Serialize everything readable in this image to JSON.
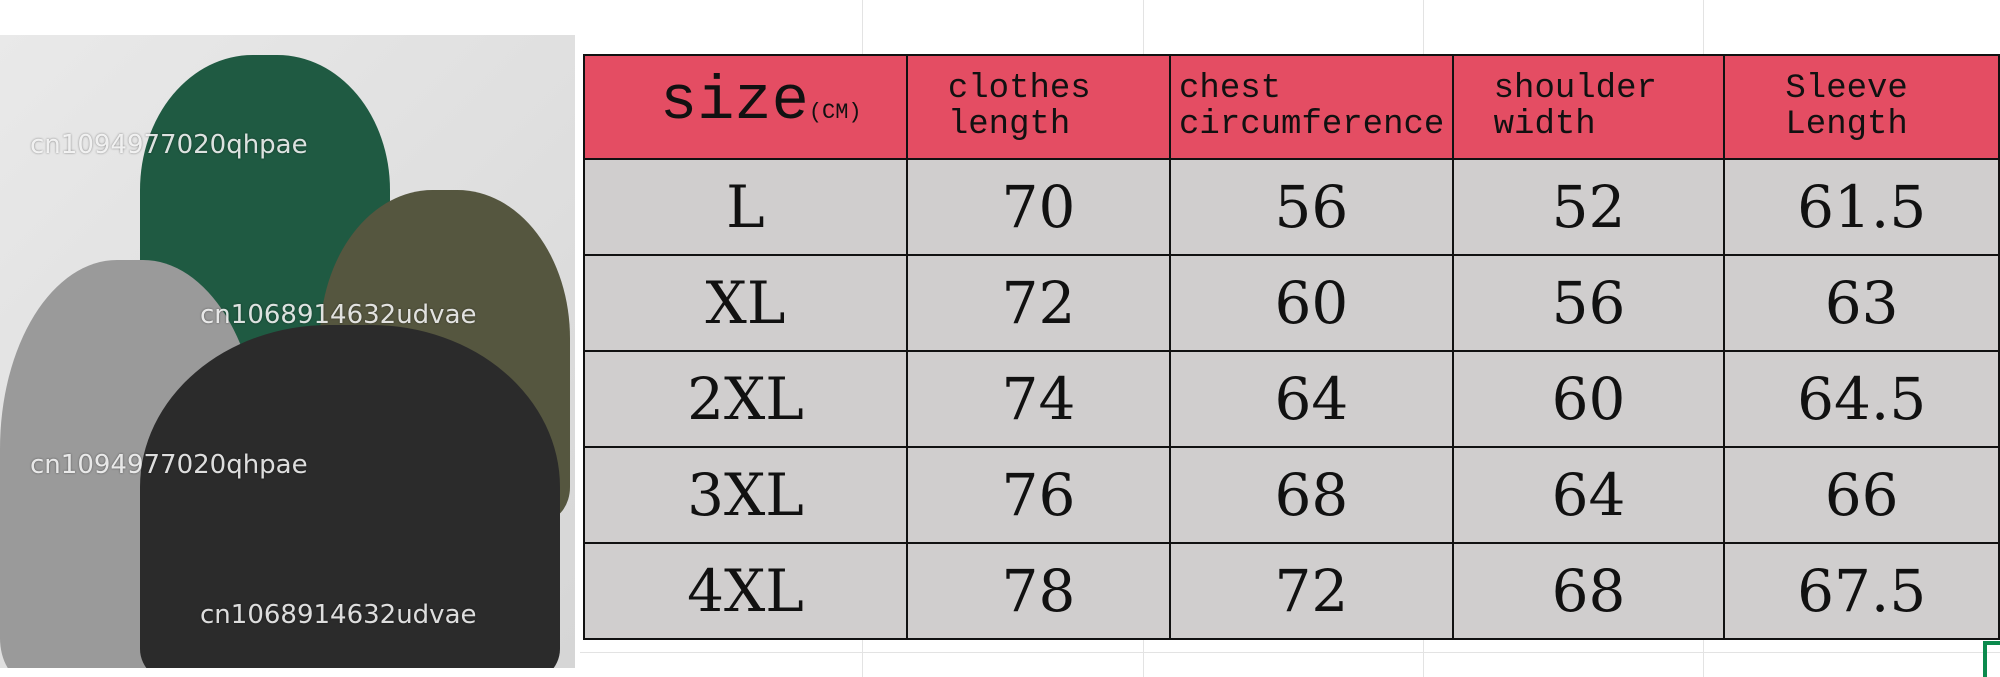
{
  "table": {
    "headers": {
      "size": "size",
      "size_unit": "(CM)",
      "clothes_length": [
        "clothes",
        "length"
      ],
      "chest": [
        "chest",
        "circumference"
      ],
      "shoulder": [
        "shoulder",
        "width"
      ],
      "sleeve": [
        "Sleeve",
        "Length"
      ]
    },
    "rows": [
      [
        "L",
        "70",
        "56",
        "52",
        "61.5"
      ],
      [
        "XL",
        "72",
        "60",
        "56",
        "63"
      ],
      [
        "2XL",
        "74",
        "64",
        "60",
        "64.5"
      ],
      [
        "3XL",
        "76",
        "68",
        "64",
        "66"
      ],
      [
        "4XL",
        "78",
        "72",
        "68",
        "67.5"
      ]
    ]
  },
  "watermarks": [
    "cn1094977020qhpae",
    "cn1068914632udvae"
  ],
  "colors": {
    "header": "#e44d63",
    "cell": "#d0cece",
    "selection": "#0b8a4d"
  }
}
